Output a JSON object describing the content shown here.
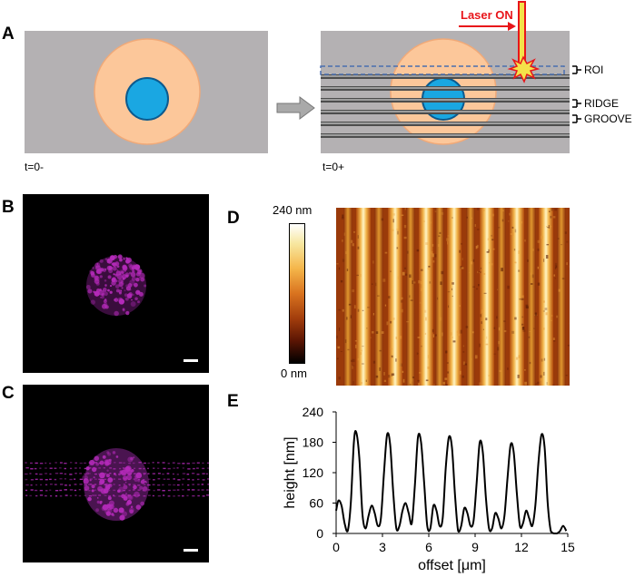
{
  "panels": {
    "A": {
      "letter": "A",
      "t_before": "t=0-",
      "t_after": "t=0+",
      "laser_label": "Laser ON",
      "roi_label": "ROI",
      "ridge_label": "RIDGE",
      "groove_label": "GROOVE"
    },
    "B": {
      "letter": "B"
    },
    "C": {
      "letter": "C"
    },
    "D": {
      "letter": "D",
      "colorbar_max": "240 nm",
      "colorbar_min": "0 nm"
    },
    "E": {
      "letter": "E"
    }
  },
  "colors": {
    "cell_gray": "#b4b1b3",
    "cytoplasm": "#fcc79a",
    "nucleus": "#1aa7e2",
    "laser": "#e8151a",
    "roi_dash": "#4a6fb0",
    "magenta": "#b42ab9"
  },
  "chart_data": {
    "type": "line",
    "title": "",
    "xlabel": "offset [μm]",
    "ylabel": "height [nm]",
    "xlim": [
      0,
      15
    ],
    "ylim": [
      0,
      240
    ],
    "xticks": [
      "0",
      "3",
      "6",
      "9",
      "12",
      "15"
    ],
    "yticks": [
      "0",
      "60",
      "120",
      "180",
      "240"
    ],
    "grid": false,
    "series": [
      {
        "x": [
          0,
          0.15,
          0.35,
          0.55,
          0.75,
          0.95,
          1.15,
          1.3,
          1.5,
          1.7,
          1.9,
          2.1,
          2.3,
          2.5,
          2.7,
          2.9,
          3.1,
          3.3,
          3.5,
          3.7,
          3.9,
          4.1,
          4.3,
          4.5,
          4.7,
          4.9,
          5.1,
          5.3,
          5.5,
          5.7,
          5.9,
          6.1,
          6.3,
          6.5,
          6.7,
          6.9,
          7.1,
          7.3,
          7.5,
          7.7,
          7.9,
          8.1,
          8.3,
          8.5,
          8.7,
          8.9,
          9.1,
          9.3,
          9.5,
          9.7,
          9.9,
          10.1,
          10.3,
          10.5,
          10.7,
          10.9,
          11.1,
          11.3,
          11.5,
          11.7,
          11.9,
          12.1,
          12.3,
          12.5,
          12.7,
          12.9,
          13.1,
          13.3,
          13.5,
          13.7,
          13.9,
          14.1,
          14.3,
          14.5,
          14.7,
          14.9
        ],
        "y": [
          45,
          65,
          55,
          20,
          5,
          60,
          180,
          200,
          150,
          40,
          10,
          35,
          55,
          40,
          15,
          30,
          120,
          195,
          175,
          80,
          10,
          15,
          45,
          60,
          40,
          20,
          95,
          190,
          180,
          100,
          15,
          10,
          55,
          45,
          15,
          30,
          130,
          190,
          170,
          75,
          5,
          15,
          50,
          40,
          15,
          25,
          100,
          180,
          160,
          70,
          10,
          10,
          40,
          30,
          10,
          35,
          110,
          175,
          160,
          80,
          15,
          20,
          45,
          30,
          15,
          55,
          140,
          195,
          170,
          60,
          5,
          0,
          0,
          5,
          15,
          5
        ]
      }
    ]
  }
}
